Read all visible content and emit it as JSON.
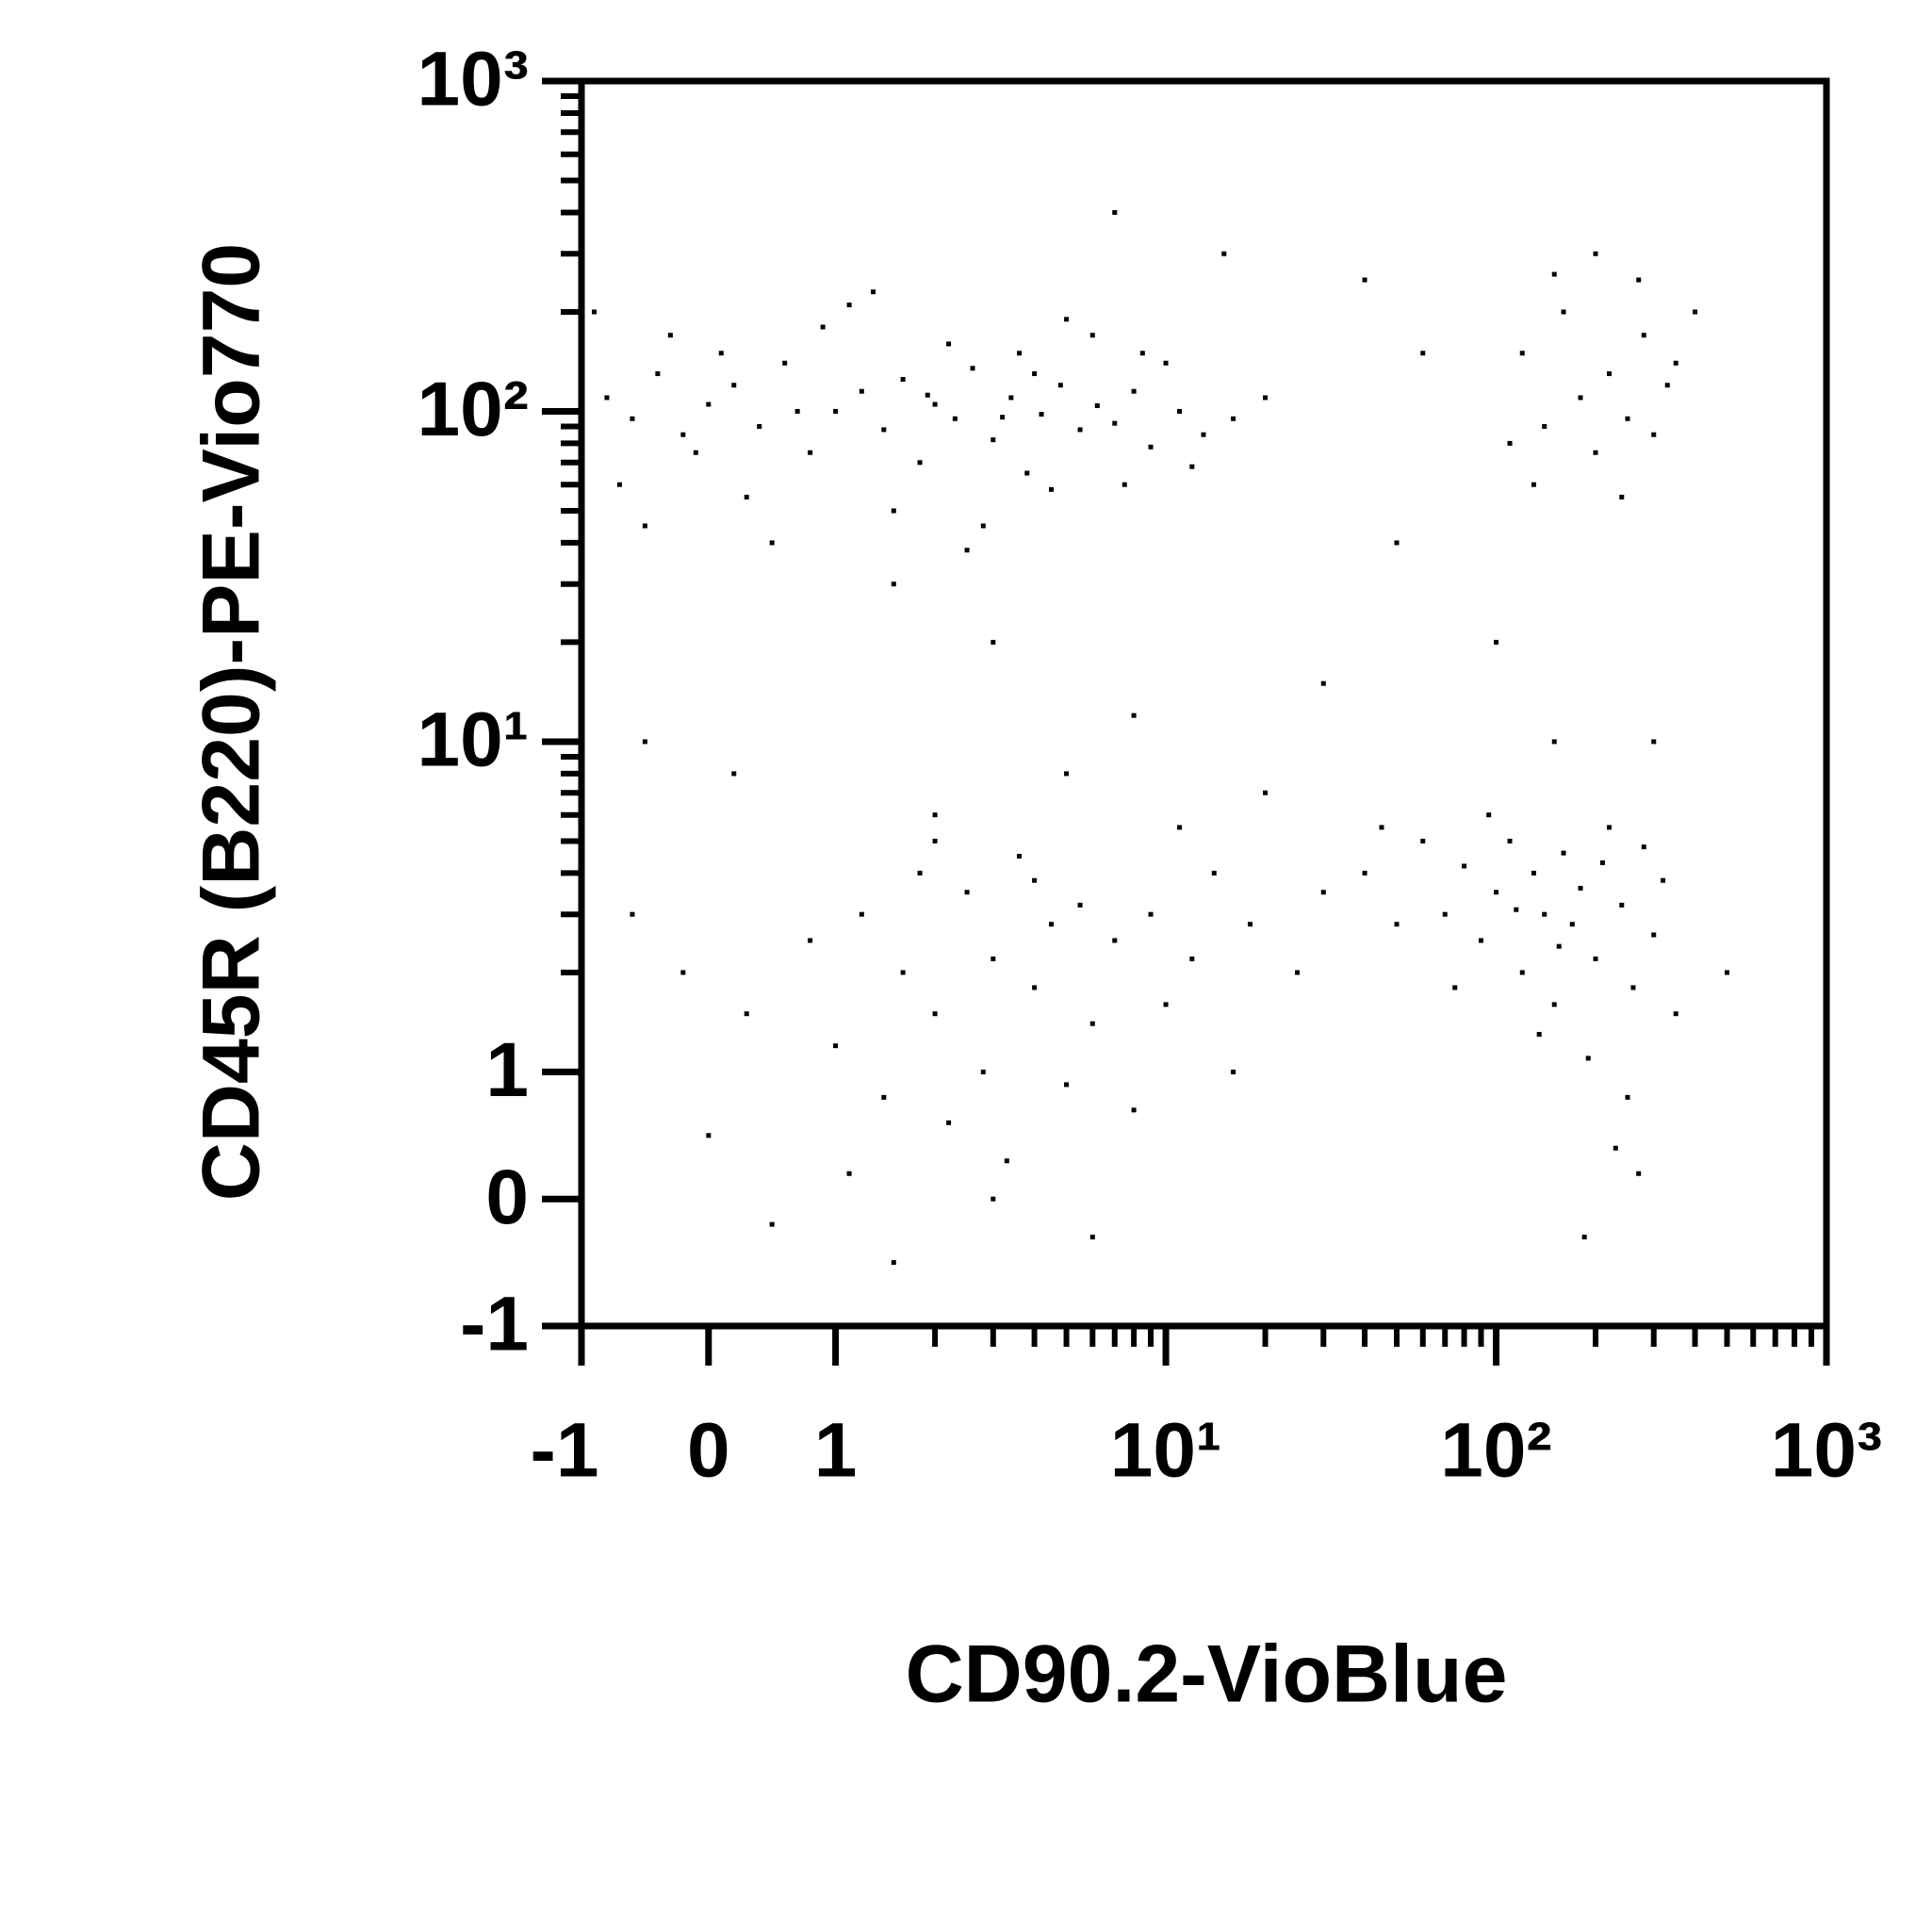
{
  "chart_data": {
    "type": "scatter",
    "x_label": "CD90.2-VioBlue",
    "y_label": "CD45R (B220)-PE-Vio770",
    "xscale": "biexponential",
    "yscale": "biexponential",
    "minor_ticks": true,
    "color": "#000000",
    "xlim": [
      -1,
      1000
    ],
    "ylim": [
      -1,
      1000
    ],
    "xticks": [
      -1,
      0,
      1,
      {
        "value": 10,
        "label": "10¹"
      },
      {
        "value": 100,
        "label": "10²"
      },
      {
        "value": 1000,
        "label": "10³"
      }
    ],
    "yticks": [
      -1,
      0,
      1,
      {
        "value": 10,
        "label": "10¹"
      },
      {
        "value": 100,
        "label": "10²"
      },
      {
        "value": 1000,
        "label": "10³"
      }
    ],
    "x": [
      -0.8,
      -0.6,
      -0.4,
      -0.2,
      0,
      0.2,
      0.4,
      0.6,
      0.8,
      1,
      1.2,
      1.4,
      1.6,
      1.8,
      2,
      2.3,
      2.6,
      3,
      3.4,
      3.8,
      4.2,
      4.8,
      5.5,
      6.2,
      7,
      8,
      9,
      11,
      13,
      16,
      -0.7,
      -0.3,
      0.3,
      0.9,
      1.5,
      2.2,
      2.8,
      3.6,
      4.5,
      6,
      7.5,
      10,
      -0.9,
      0.5,
      1.1,
      2.5,
      5,
      -0.1,
      0.7,
      1.9,
      3.2,
      4,
      12,
      20,
      0.1,
      -0.5,
      1.3,
      8.5,
      70,
      80,
      90,
      100,
      110,
      120,
      130,
      140,
      150,
      160,
      170,
      180,
      200,
      220,
      240,
      260,
      280,
      300,
      320,
      350,
      60,
      75,
      95,
      115,
      135,
      155,
      190,
      210,
      250,
      270,
      230,
      185,
      40,
      50,
      30,
      25,
      45,
      0.8,
      1,
      1.2,
      1.4,
      1.6,
      1.8,
      2,
      2.2,
      2.5,
      2.8,
      3,
      3.3,
      3.6,
      4,
      4.5,
      5,
      5.5,
      6,
      7,
      8,
      9,
      10,
      12,
      14,
      16,
      18,
      -0.2,
      0,
      0.3,
      -0.6,
      0.5,
      1.5,
      3,
      6,
      2,
      4,
      11,
      1.1,
      120,
      140,
      160,
      180,
      200,
      220,
      250,
      280,
      300,
      330,
      110,
      150,
      240,
      200,
      350,
      400,
      130,
      270,
      3,
      8,
      20,
      1.5,
      50,
      30,
      5,
      2,
      -0.5,
      100,
      15,
      60,
      40,
      0.2,
      150,
      500,
      7,
      300
    ],
    "y": [
      110,
      95,
      130,
      85,
      105,
      120,
      90,
      140,
      75,
      100,
      115,
      88,
      125,
      70,
      105,
      95,
      135,
      82,
      110,
      65,
      98,
      120,
      88,
      104,
      92,
      115,
      78,
      100,
      85,
      95,
      60,
      170,
      55,
      180,
      50,
      160,
      45,
      150,
      58,
      170,
      60,
      140,
      200,
      40,
      210,
      38,
      190,
      75,
      100,
      112,
      96,
      130,
      68,
      110,
      150,
      45,
      230,
      150,
      3,
      4.2,
      2.5,
      3.5,
      5,
      2,
      4,
      3,
      1.6,
      4.6,
      2.8,
      3.6,
      2.2,
      5.5,
      3.2,
      1.8,
      4.8,
      2.6,
      3.8,
      1.5,
      5,
      1.8,
      6,
      3.1,
      1.3,
      2.4,
      1.1,
      4.3,
      0.8,
      0.2,
      0.4,
      -0.3,
      4,
      2.8,
      3.5,
      2,
      5.5,
      2.5,
      1.2,
      3,
      0.8,
      2,
      4,
      1.5,
      0.6,
      3.5,
      1,
      2.2,
      0.3,
      4.5,
      1.8,
      2.8,
      0.9,
      3.2,
      1.4,
      2.5,
      0.7,
      3,
      1.6,
      2.2,
      4,
      1,
      2.8,
      2,
      0.5,
      1.5,
      3,
      -0.2,
      -0.5,
      0,
      -0.3,
      5,
      3.8,
      5.5,
      0.2,
      150,
      90,
      200,
      110,
      75,
      130,
      95,
      170,
      85,
      120,
      80,
      260,
      55,
      300,
      140,
      200,
      60,
      250,
      20,
      12,
      7,
      30,
      40,
      15,
      8,
      6,
      10,
      20,
      300,
      150,
      250,
      8,
      10,
      2,
      400,
      10
    ]
  }
}
